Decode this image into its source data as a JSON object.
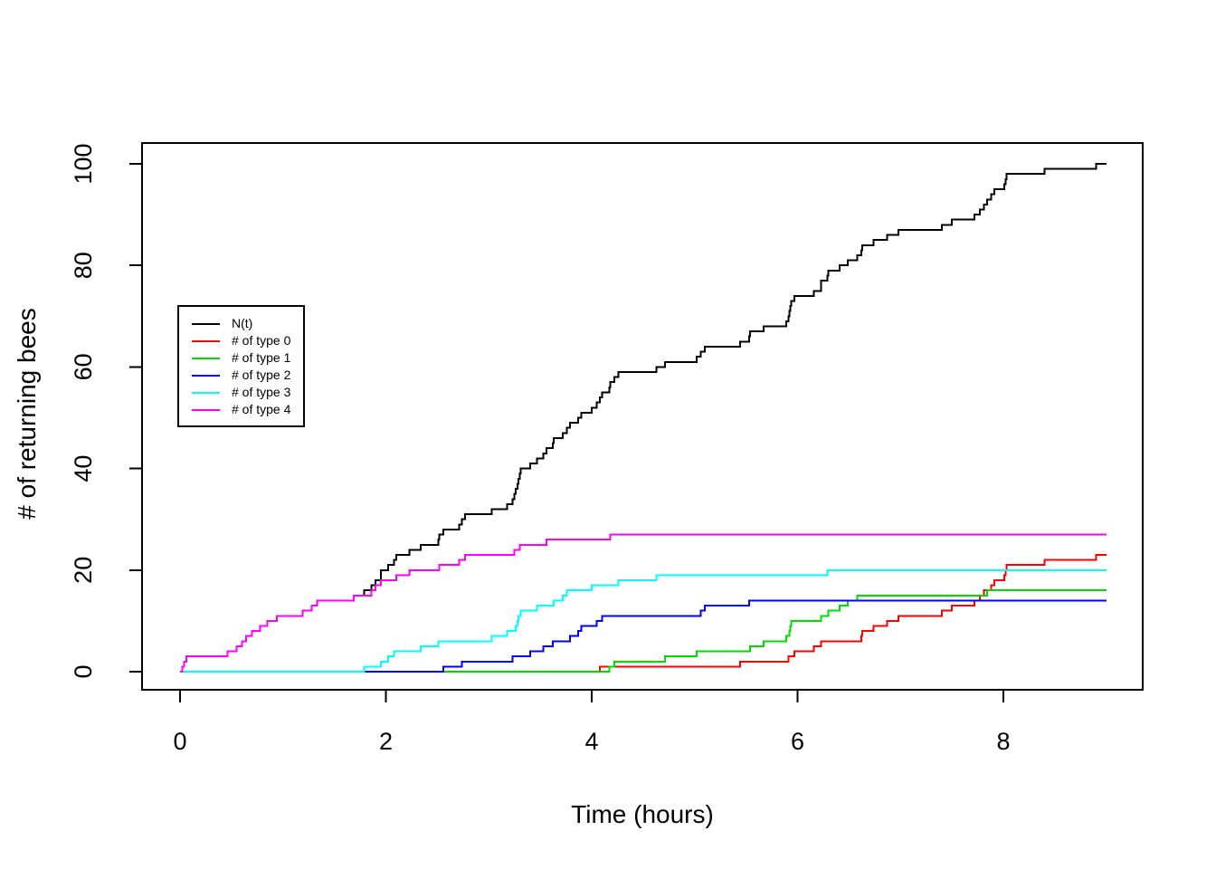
{
  "figure": {
    "background_color": "#ffffff",
    "plot_border_color": "#000000"
  },
  "chart_data": {
    "type": "line",
    "subtype": "step-cumulative-counts",
    "title": "",
    "xlabel": "Time (hours)",
    "ylabel": "# of returning bees",
    "x_ticks": [
      0,
      2,
      4,
      6,
      8
    ],
    "y_ticks": [
      0,
      20,
      40,
      60,
      80,
      100
    ],
    "xlim": [
      -0.37,
      9.37
    ],
    "ylim": [
      -4,
      104
    ],
    "grid": false,
    "legend_position": "left-middle-inside",
    "t_start": 0,
    "t_end": 9.0,
    "series": [
      {
        "name": "N(t)",
        "color": "#000000",
        "start_value": 0,
        "final_value": 100,
        "event_times": [
          0.02,
          0.04,
          0.06,
          0.46,
          0.55,
          0.6,
          0.64,
          0.7,
          0.78,
          0.85,
          0.94,
          1.19,
          1.28,
          1.33,
          1.69,
          1.79,
          1.86,
          1.9,
          1.95,
          1.95,
          2.02,
          2.08,
          2.1,
          2.23,
          2.34,
          2.51,
          2.52,
          2.56,
          2.71,
          2.74,
          2.77,
          3.03,
          3.18,
          3.23,
          3.25,
          3.26,
          3.28,
          3.29,
          3.3,
          3.31,
          3.4,
          3.47,
          3.53,
          3.56,
          3.62,
          3.63,
          3.72,
          3.76,
          3.79,
          3.87,
          3.9,
          4.0,
          4.05,
          4.08,
          4.1,
          4.17,
          4.18,
          4.22,
          4.26,
          4.63,
          4.71,
          5.02,
          5.06,
          5.1,
          5.44,
          5.53,
          5.54,
          5.67,
          5.89,
          5.91,
          5.92,
          5.93,
          5.94,
          5.97,
          6.16,
          6.23,
          6.23,
          6.29,
          6.3,
          6.41,
          6.49,
          6.58,
          6.62,
          6.63,
          6.74,
          6.87,
          6.98,
          7.4,
          7.5,
          7.72,
          7.77,
          7.81,
          7.84,
          7.88,
          7.91,
          8.01,
          8.02,
          8.03,
          8.4,
          8.9
        ]
      },
      {
        "name": "# of type 0",
        "color": "#FF0000",
        "start_value": 0,
        "final_value": 23,
        "event_times": [
          4.08,
          5.44,
          5.91,
          5.97,
          6.16,
          6.23,
          6.62,
          6.63,
          6.74,
          6.87,
          6.98,
          7.4,
          7.5,
          7.72,
          7.77,
          7.81,
          7.88,
          7.91,
          8.01,
          8.02,
          8.03,
          8.4,
          8.9
        ]
      },
      {
        "name": "# of type 1",
        "color": "#00DC00",
        "start_value": 0,
        "final_value": 16,
        "event_times": [
          4.17,
          4.22,
          4.71,
          5.02,
          5.54,
          5.67,
          5.89,
          5.92,
          5.93,
          5.94,
          6.23,
          6.3,
          6.41,
          6.49,
          6.58,
          7.84
        ]
      },
      {
        "name": "# of type 2",
        "color": "#0000FF",
        "start_value": 0,
        "final_value": 14,
        "event_times": [
          2.56,
          2.74,
          3.23,
          3.4,
          3.53,
          3.62,
          3.79,
          3.87,
          3.9,
          4.05,
          4.1,
          5.06,
          5.1,
          5.53
        ]
      },
      {
        "name": "# of type 3",
        "color": "#00FFFF",
        "start_value": 0,
        "final_value": 20,
        "event_times": [
          1.79,
          1.95,
          2.02,
          2.08,
          2.34,
          2.51,
          3.03,
          3.18,
          3.26,
          3.28,
          3.29,
          3.31,
          3.47,
          3.63,
          3.72,
          3.76,
          4.0,
          4.26,
          4.63,
          6.29
        ]
      },
      {
        "name": "# of type 4",
        "color": "#FF00FF",
        "start_value": 0,
        "final_value": 27,
        "event_times": [
          0.02,
          0.04,
          0.06,
          0.46,
          0.55,
          0.6,
          0.64,
          0.7,
          0.78,
          0.85,
          0.94,
          1.19,
          1.28,
          1.33,
          1.69,
          1.86,
          1.9,
          1.95,
          2.1,
          2.23,
          2.52,
          2.71,
          2.77,
          3.25,
          3.3,
          3.56,
          4.18
        ]
      }
    ]
  }
}
